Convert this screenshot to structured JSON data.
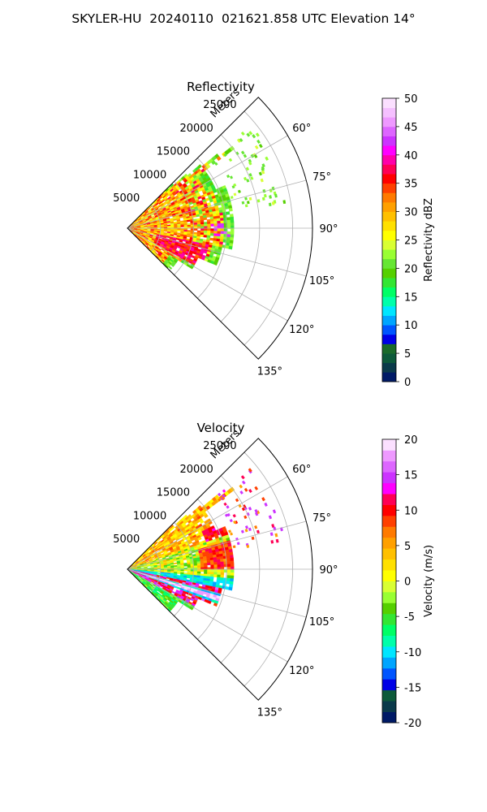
{
  "figure": {
    "title": "SKYLER-HU  20240110  021621.858 UTC Elevation 14°"
  },
  "chart_data": [
    {
      "type": "heatmap",
      "title": "Reflectivity",
      "radial_label": "Meters",
      "radial_ticks": [
        5000,
        10000,
        15000,
        20000,
        25000
      ],
      "angle_ticks": [
        "60°",
        "75°",
        "90°",
        "105°",
        "120°",
        "135°"
      ],
      "angle_range_deg": [
        45,
        135
      ],
      "range_max_m": 28000,
      "grid": true,
      "colorbar": {
        "label": "Reflectivity dBZ",
        "ticks": [
          0,
          5,
          10,
          15,
          20,
          25,
          30,
          35,
          40,
          45,
          50
        ],
        "vmin": 0,
        "vmax": 50,
        "colors": [
          "#001a66",
          "#0a3a4a",
          "#0d5a3a",
          "#1a6a2a",
          "#0000e6",
          "#0055ff",
          "#00a5ff",
          "#00e6ff",
          "#00ffaa",
          "#00ff66",
          "#33e633",
          "#55d000",
          "#66e633",
          "#99ff33",
          "#d9ff33",
          "#ffff00",
          "#ffe000",
          "#ffc000",
          "#ffa000",
          "#ff7a00",
          "#ff4000",
          "#ff0000",
          "#ff0055",
          "#ff00aa",
          "#ff00ff",
          "#cc33ff",
          "#dd66ff",
          "#ee99ff",
          "#f5c0ff",
          "#fbe0ff"
        ]
      }
    },
    {
      "type": "heatmap",
      "title": "Velocity",
      "radial_label": "Meters",
      "radial_ticks": [
        5000,
        10000,
        15000,
        20000,
        25000
      ],
      "angle_ticks": [
        "60°",
        "75°",
        "90°",
        "105°",
        "120°",
        "135°"
      ],
      "angle_range_deg": [
        45,
        135
      ],
      "range_max_m": 28000,
      "grid": true,
      "colorbar": {
        "label": "Velocity (m/s)",
        "ticks": [
          -20,
          -15,
          -10,
          -5,
          0,
          5,
          10,
          15,
          20
        ],
        "vmin": -20,
        "vmax": 20,
        "colors": [
          "#001a66",
          "#0a3a4a",
          "#0d5a3a",
          "#0000e6",
          "#0055ff",
          "#00a5ff",
          "#00e6ff",
          "#00ffaa",
          "#00ff66",
          "#33e633",
          "#55d000",
          "#99ff33",
          "#d9ff33",
          "#ffff00",
          "#ffe000",
          "#ffc000",
          "#ffa000",
          "#ff7a00",
          "#ff4000",
          "#ff0000",
          "#ff0055",
          "#ff00ff",
          "#cc33ff",
          "#dd66ff",
          "#ee99ff",
          "#fbe0ff"
        ]
      }
    }
  ]
}
